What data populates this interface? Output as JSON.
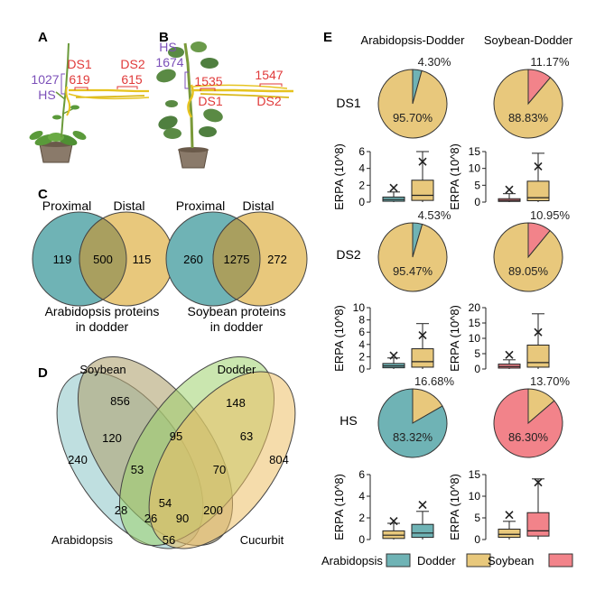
{
  "panels": {
    "A": {
      "letter": "A",
      "ds1": {
        "name": "DS1",
        "value": "619"
      },
      "ds2": {
        "name": "DS2",
        "value": "615"
      },
      "hs": {
        "name": "HS",
        "value": "1027"
      }
    },
    "B": {
      "letter": "B",
      "hs": {
        "name": "HS",
        "value": "1674"
      },
      "ds1": {
        "name": "DS1",
        "value": "1535"
      },
      "ds2": {
        "name": "DS2",
        "value": "1547"
      }
    },
    "C": {
      "letter": "C",
      "left": {
        "proximal_label": "Proximal",
        "distal_label": "Distal",
        "proximal_only": "119",
        "shared": "500",
        "distal_only": "115",
        "caption_1": "Arabidopsis proteins",
        "caption_2": "in dodder"
      },
      "right": {
        "proximal_label": "Proximal",
        "distal_label": "Distal",
        "proximal_only": "260",
        "shared": "1275",
        "distal_only": "272",
        "caption_1": "Soybean proteins",
        "caption_2": "in dodder"
      }
    },
    "D": {
      "letter": "D",
      "set_labels": {
        "soybean": "Soybean",
        "dodder": "Dodder",
        "arabidopsis": "Arabidopsis",
        "cucurbit": "Cucurbit"
      },
      "counts": {
        "arabidopsis_only": "240",
        "soybean_only": "856",
        "dodder_only": "148",
        "cucurbit_only": "804",
        "ara_soy": "120",
        "soy_dod": "95",
        "dod_cuc": "63",
        "ara_soy_dod": "53",
        "soy_dod_cuc": "70",
        "ara_dod": "28",
        "all_four": "54",
        "ara_dod_cuc": "26",
        "ara_soy_cuc": "90",
        "soy_cuc": "200",
        "ara_cuc": "56"
      }
    },
    "E": {
      "letter": "E",
      "col_headers": [
        "Arabidopsis-Dodder",
        "Soybean-Dodder"
      ],
      "row_labels": [
        "DS1",
        "DS2",
        "HS"
      ],
      "y_axis_title": "ERPA (10^8)"
    }
  },
  "legend": {
    "items": [
      {
        "label": "Arabidopsis",
        "color": "#6fb3b5"
      },
      {
        "label": "Dodder",
        "color": "#e8c87c"
      },
      {
        "label": "Soybean",
        "color": "#f2838a"
      }
    ]
  },
  "colors": {
    "arabidopsis": "#6fb3b5",
    "dodder": "#e8c87c",
    "soybean": "#f2838a",
    "annot_red": "#e03a3a",
    "annot_purple": "#7b4fb8"
  },
  "chart_data": [
    {
      "type": "pie",
      "title": "",
      "row": "DS1",
      "column": "Arabidopsis-Dodder",
      "slices": [
        {
          "label": "Arabidopsis",
          "value": 4.3,
          "text": "4.30%"
        },
        {
          "label": "Dodder",
          "value": 95.7,
          "text": "95.70%"
        }
      ]
    },
    {
      "type": "pie",
      "title": "",
      "row": "DS1",
      "column": "Soybean-Dodder",
      "slices": [
        {
          "label": "Soybean",
          "value": 11.17,
          "text": "11.17%"
        },
        {
          "label": "Dodder",
          "value": 88.83,
          "text": "88.83%"
        }
      ]
    },
    {
      "type": "pie",
      "title": "",
      "row": "DS2",
      "column": "Arabidopsis-Dodder",
      "slices": [
        {
          "label": "Arabidopsis",
          "value": 4.53,
          "text": "4.53%"
        },
        {
          "label": "Dodder",
          "value": 95.47,
          "text": "95.47%"
        }
      ]
    },
    {
      "type": "pie",
      "title": "",
      "row": "DS2",
      "column": "Soybean-Dodder",
      "slices": [
        {
          "label": "Soybean",
          "value": 10.95,
          "text": "10.95%"
        },
        {
          "label": "Dodder",
          "value": 89.05,
          "text": "89.05%"
        }
      ]
    },
    {
      "type": "pie",
      "title": "",
      "row": "HS",
      "column": "Arabidopsis-Dodder",
      "slices": [
        {
          "label": "Dodder",
          "value": 16.68,
          "text": "16.68%"
        },
        {
          "label": "Arabidopsis",
          "value": 83.32,
          "text": "83.32%"
        }
      ]
    },
    {
      "type": "pie",
      "title": "",
      "row": "HS",
      "column": "Soybean-Dodder",
      "slices": [
        {
          "label": "Dodder",
          "value": 13.7,
          "text": "13.70%"
        },
        {
          "label": "Soybean",
          "value": 86.3,
          "text": "86.30%"
        }
      ]
    },
    {
      "type": "box",
      "row": "DS1",
      "column": "Arabidopsis-Dodder",
      "ylabel": "ERPA (10^8)",
      "ylim": [
        0,
        6
      ],
      "yticks": [
        0,
        2,
        4,
        6
      ],
      "boxes": [
        {
          "group": "Arabidopsis",
          "color": "#6fb3b5",
          "min": 0,
          "q1": 0.1,
          "median": 0.3,
          "q3": 0.6,
          "max": 1.2,
          "mean": 1.7
        },
        {
          "group": "Dodder",
          "color": "#e8c87c",
          "min": 0,
          "q1": 0.2,
          "median": 0.8,
          "q3": 2.6,
          "max": 6.0,
          "mean": 4.8
        }
      ]
    },
    {
      "type": "box",
      "row": "DS1",
      "column": "Soybean-Dodder",
      "ylabel": "ERPA (10^8)",
      "ylim": [
        0,
        15
      ],
      "yticks": [
        0,
        5,
        10,
        15
      ],
      "boxes": [
        {
          "group": "Soybean",
          "color": "#f2838a",
          "min": 0,
          "q1": 0.2,
          "median": 0.5,
          "q3": 1.0,
          "max": 2.5,
          "mean": 3.7
        },
        {
          "group": "Dodder",
          "color": "#e8c87c",
          "min": 0,
          "q1": 0.4,
          "median": 1.3,
          "q3": 6.2,
          "max": 14.5,
          "mean": 10.6
        }
      ]
    },
    {
      "type": "box",
      "row": "DS2",
      "column": "Arabidopsis-Dodder",
      "ylabel": "ERPA (10^8)",
      "ylim": [
        0,
        10
      ],
      "yticks": [
        0,
        2,
        4,
        6,
        8,
        10
      ],
      "boxes": [
        {
          "group": "Arabidopsis",
          "color": "#6fb3b5",
          "min": 0,
          "q1": 0.2,
          "median": 0.5,
          "q3": 0.9,
          "max": 1.8,
          "mean": 2.2
        },
        {
          "group": "Dodder",
          "color": "#e8c87c",
          "min": 0,
          "q1": 0.3,
          "median": 1.2,
          "q3": 3.3,
          "max": 7.4,
          "mean": 5.5
        }
      ]
    },
    {
      "type": "box",
      "row": "DS2",
      "column": "Soybean-Dodder",
      "ylabel": "ERPA (10^8)",
      "ylim": [
        0,
        20
      ],
      "yticks": [
        0,
        5,
        10,
        15,
        20
      ],
      "boxes": [
        {
          "group": "Soybean",
          "color": "#f2838a",
          "min": 0,
          "q1": 0.3,
          "median": 0.8,
          "q3": 1.6,
          "max": 3.0,
          "mean": 4.6
        },
        {
          "group": "Dodder",
          "color": "#e8c87c",
          "min": 0,
          "q1": 0.6,
          "median": 2.1,
          "q3": 7.8,
          "max": 18.0,
          "mean": 12.0
        }
      ]
    },
    {
      "type": "box",
      "row": "HS",
      "column": "Arabidopsis-Dodder",
      "ylabel": "ERPA (10^8)",
      "ylim": [
        0,
        6
      ],
      "yticks": [
        0,
        2,
        4,
        6
      ],
      "boxes": [
        {
          "group": "Dodder",
          "color": "#e8c87c",
          "min": 0,
          "q1": 0.1,
          "median": 0.4,
          "q3": 0.8,
          "max": 1.5,
          "mean": 1.7
        },
        {
          "group": "Arabidopsis",
          "color": "#6fb3b5",
          "min": 0,
          "q1": 0.2,
          "median": 0.6,
          "q3": 1.4,
          "max": 2.6,
          "mean": 3.2
        }
      ]
    },
    {
      "type": "box",
      "row": "HS",
      "column": "Soybean-Dodder",
      "ylabel": "ERPA (10^8)",
      "ylim": [
        0,
        15
      ],
      "yticks": [
        0,
        5,
        10,
        15
      ],
      "boxes": [
        {
          "group": "Dodder",
          "color": "#e8c87c",
          "min": 0,
          "q1": 0.5,
          "median": 1.2,
          "q3": 2.4,
          "max": 4.2,
          "mean": 5.7
        },
        {
          "group": "Soybean",
          "color": "#f2838a",
          "min": 0,
          "q1": 0.8,
          "median": 2.0,
          "q3": 6.2,
          "max": 14.0,
          "mean": 13.2
        }
      ]
    }
  ]
}
